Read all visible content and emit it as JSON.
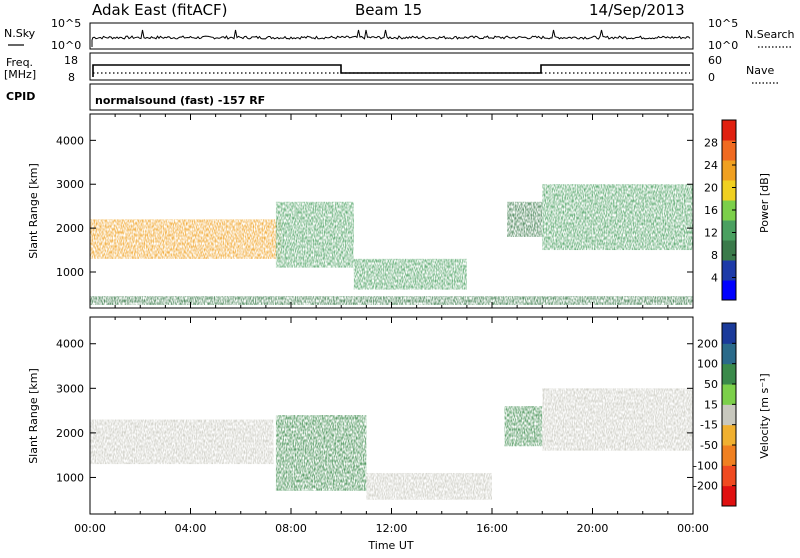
{
  "header": {
    "station": "Adak East (fitACF)",
    "beam": "Beam 15",
    "date": "14/Sep/2013"
  },
  "top_panels": {
    "nsky": {
      "label": "N.Sky",
      "left_ticks": [
        "10^5",
        "10^0"
      ],
      "right_ticks": [
        "10^5",
        "10^0"
      ],
      "right_label": "N.Search"
    },
    "freq": {
      "label_line1": "Freq.",
      "label_line2": "[MHz]",
      "left_ticks": [
        "18",
        "8"
      ],
      "right_ticks": [
        "60",
        "0"
      ],
      "right_label": "Nave"
    },
    "cpid": {
      "label": "CPID",
      "text": "normalsound (fast) -157 RF"
    }
  },
  "chart_data": [
    {
      "type": "heatmap",
      "name": "power",
      "ylabel": "Slant Range [km]",
      "yticks": [
        1000,
        2000,
        3000,
        4000
      ],
      "ylim": [
        180,
        4600
      ],
      "xlim_hours": [
        0,
        24
      ],
      "colorbar": {
        "label": "Power [dB]",
        "ticks": [
          4,
          8,
          12,
          16,
          20,
          24,
          28
        ],
        "range": [
          0,
          32
        ],
        "colors": [
          "#0000ff",
          "#1d3aa8",
          "#3a7a4a",
          "#4aa060",
          "#7cd04a",
          "#f0d020",
          "#f0a020",
          "#f06a20",
          "#e02010"
        ]
      },
      "features": [
        {
          "hours": [
            0,
            7.6
          ],
          "range_km": [
            1300,
            2200
          ],
          "level_db": 22
        },
        {
          "hours": [
            7.4,
            10.5
          ],
          "range_km": [
            1100,
            2600
          ],
          "level_db": 12
        },
        {
          "hours": [
            10.5,
            15.0
          ],
          "range_km": [
            600,
            1300
          ],
          "level_db": 12
        },
        {
          "hours": [
            16.6,
            18.0
          ],
          "range_km": [
            1800,
            2600
          ],
          "level_db": 10
        },
        {
          "hours": [
            18.0,
            24
          ],
          "range_km": [
            1500,
            3000
          ],
          "level_db": 14
        },
        {
          "hours": [
            0,
            24
          ],
          "range_km": [
            250,
            450
          ],
          "level_db": 8
        }
      ]
    },
    {
      "type": "heatmap",
      "name": "velocity",
      "ylabel": "Slant Range [km]",
      "yticks": [
        1000,
        2000,
        3000,
        4000
      ],
      "ylim": [
        180,
        4600
      ],
      "xlim_hours": [
        0,
        24
      ],
      "xlabel": "Time UT",
      "xticks": [
        "00:00",
        "04:00",
        "08:00",
        "12:00",
        "16:00",
        "20:00",
        "00:00"
      ],
      "colorbar": {
        "label": "Velocity [m s⁻¹]",
        "ticks": [
          200,
          100,
          50,
          15,
          -15,
          -50,
          -100,
          -200
        ],
        "colors": [
          "#1a3a9a",
          "#2a6a8a",
          "#3a8a4a",
          "#7cd04a",
          "#c8c8be",
          "#f0b030",
          "#f08020",
          "#f04a20",
          "#e01010"
        ]
      },
      "features": [
        {
          "hours": [
            0,
            7.3
          ],
          "range_km": [
            1300,
            2300
          ],
          "velocity_ms": 0
        },
        {
          "hours": [
            7.4,
            11.0
          ],
          "range_km": [
            700,
            2400
          ],
          "velocity_ms": 60
        },
        {
          "hours": [
            11.0,
            16.0
          ],
          "range_km": [
            500,
            1100
          ],
          "velocity_ms": 0
        },
        {
          "hours": [
            16.5,
            18.0
          ],
          "range_km": [
            1700,
            2600
          ],
          "velocity_ms": 50
        },
        {
          "hours": [
            18.0,
            24
          ],
          "range_km": [
            1600,
            3000
          ],
          "velocity_ms": 0
        }
      ]
    }
  ]
}
